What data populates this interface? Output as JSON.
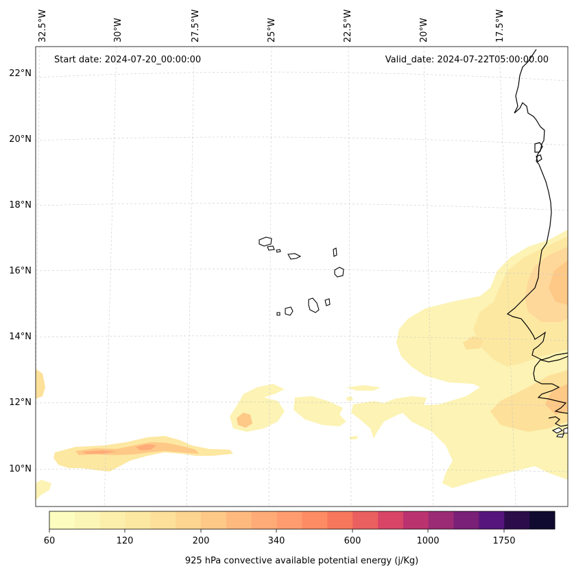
{
  "header": {
    "start_date": "Start date: 2024-07-20_00:00:00",
    "valid_date": "Valid_date: 2024-07-22T05:00:00.00"
  },
  "axes": {
    "lon_labels": [
      "32.5°W",
      "30°W",
      "27.5°W",
      "25°W",
      "22.5°W",
      "20°W",
      "17.5°W"
    ],
    "lat_labels": [
      "22°N",
      "20°N",
      "18°N",
      "16°N",
      "14°N",
      "12°N",
      "10°N"
    ]
  },
  "colorbar": {
    "tick_labels": [
      "60",
      "120",
      "200",
      "340",
      "600",
      "1000",
      "1750"
    ],
    "label": "925 hPa convective available potential energy (j/Kg)",
    "colors": [
      "#fcfdbf",
      "#fcf6b6",
      "#fcefab",
      "#fde8a2",
      "#fde099",
      "#fdd490",
      "#fec887",
      "#feb97f",
      "#feab78",
      "#fe9c70",
      "#fd8b63",
      "#f6775c",
      "#ea5f5f",
      "#d74567",
      "#ba336f",
      "#9a2b74",
      "#7a2077",
      "#56157c",
      "#2c0d4a",
      "#110a30"
    ]
  }
}
